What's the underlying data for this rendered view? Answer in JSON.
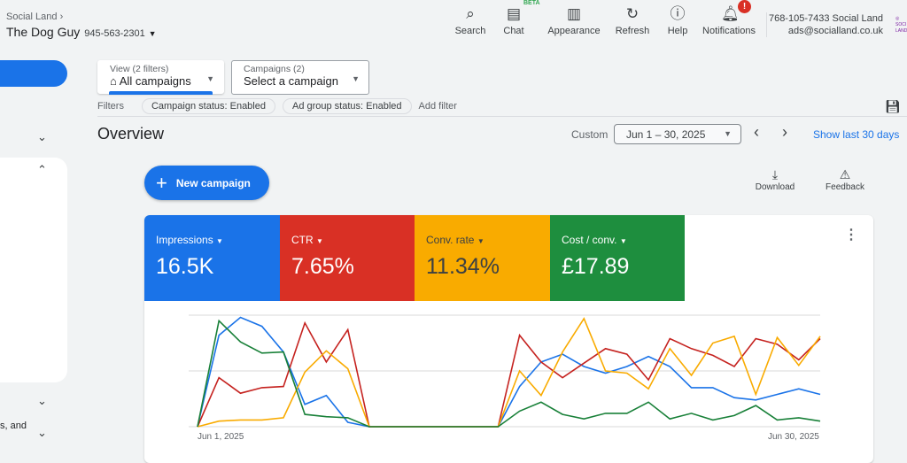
{
  "header": {
    "breadcrumb": "Social Land",
    "account_name": "The Dog Guy",
    "account_id": "945-563-2301",
    "toolbar": [
      {
        "label": "Search",
        "icon": "search-icon"
      },
      {
        "label": "Chat",
        "icon": "chat-icon",
        "badge": "BETA"
      },
      {
        "label": "Appearance",
        "icon": "appearance-icon"
      },
      {
        "label": "Refresh",
        "icon": "refresh-icon"
      },
      {
        "label": "Help",
        "icon": "help-icon"
      },
      {
        "label": "Notifications",
        "icon": "bell-icon",
        "badge": "!"
      }
    ],
    "user": {
      "line1": "768-105-7433 Social Land",
      "line2": "ads@socialland.co.uk"
    }
  },
  "filters_bar": {
    "view_label": "View (2 filters)",
    "view_value": "All campaigns",
    "campaigns_label": "Campaigns (2)",
    "campaigns_value": "Select a campaign",
    "filters_label": "Filters",
    "chips": [
      "Campaign status: Enabled",
      "Ad group status: Enabled"
    ],
    "add_filter": "Add filter"
  },
  "sidebar": {
    "partial_text": "s, and"
  },
  "overview": {
    "title": "Overview",
    "range_type": "Custom",
    "date_range": "Jun 1 – 30, 2025",
    "show_last": "Show last 30 days",
    "new_campaign": "New campaign",
    "download": "Download",
    "feedback": "Feedback"
  },
  "metrics": [
    {
      "label": "Impressions",
      "value": "16.5K",
      "color": "#1a73e8"
    },
    {
      "label": "CTR",
      "value": "7.65%",
      "color": "#d93025"
    },
    {
      "label": "Conv. rate",
      "value": "11.34%",
      "color": "#f9ab00"
    },
    {
      "label": "Cost / conv.",
      "value": "£17.89",
      "color": "#1e8e3e"
    }
  ],
  "chart_data": {
    "type": "line",
    "x_start_label": "Jun 1, 2025",
    "x_end_label": "Jun 30, 2025",
    "ylim": [
      0,
      100
    ],
    "grid": true,
    "series": [
      {
        "name": "Impressions",
        "color": "#1a73e8",
        "values": [
          0,
          82,
          98,
          90,
          67,
          20,
          28,
          4,
          0,
          0,
          0,
          0,
          0,
          0,
          0,
          36,
          58,
          65,
          54,
          48,
          54,
          63,
          54,
          35,
          35,
          26,
          24,
          29,
          34,
          29
        ]
      },
      {
        "name": "CTR",
        "color": "#c5221f",
        "values": [
          0,
          44,
          30,
          35,
          36,
          93,
          58,
          87,
          0,
          0,
          0,
          0,
          0,
          0,
          0,
          82,
          58,
          44,
          57,
          70,
          65,
          42,
          79,
          70,
          64,
          54,
          79,
          74,
          60,
          79
        ]
      },
      {
        "name": "Conv. rate",
        "color": "#f9ab00",
        "values": [
          0,
          5,
          6,
          6,
          8,
          49,
          68,
          52,
          0,
          0,
          0,
          0,
          0,
          0,
          0,
          50,
          28,
          67,
          97,
          50,
          48,
          34,
          70,
          46,
          75,
          81,
          29,
          80,
          55,
          81
        ]
      },
      {
        "name": "Cost / conv.",
        "color": "#188038",
        "values": [
          0,
          95,
          76,
          66,
          67,
          11,
          9,
          8,
          0,
          0,
          0,
          0,
          0,
          0,
          0,
          14,
          22,
          11,
          7,
          12,
          12,
          22,
          7,
          12,
          6,
          10,
          19,
          6,
          8,
          5
        ]
      }
    ]
  }
}
